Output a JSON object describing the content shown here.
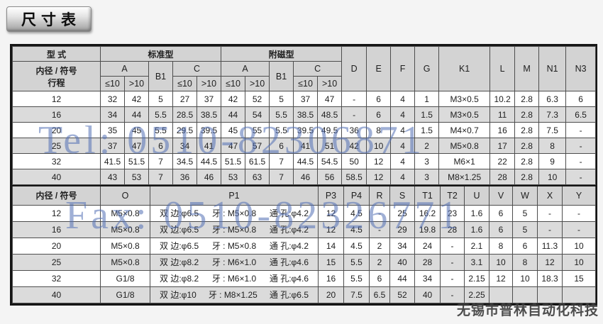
{
  "title": "尺寸表",
  "watermark": {
    "tel": "Tel: 0510-82306871",
    "fax": "Fax: 0510-82326771",
    "company": "无锡市普林自动化科技"
  },
  "s1": {
    "h": {
      "type": "型 式",
      "bore_label": "内径 / 符号",
      "stroke_label": "行程",
      "standard": "标准型",
      "magnet": "附磁型",
      "A": "A",
      "B1": "B1",
      "C": "C",
      "le10": "≤10",
      "gt10": ">10",
      "cols": [
        "D",
        "E",
        "F",
        "G",
        "K1",
        "L",
        "M",
        "N1",
        "N3"
      ]
    },
    "rows": [
      {
        "label": "12",
        "v": [
          "32",
          "42",
          "5",
          "27",
          "37",
          "42",
          "52",
          "5",
          "37",
          "47",
          "-",
          "6",
          "4",
          "1",
          "M3×0.5",
          "10.2",
          "2.8",
          "6.3",
          "6"
        ]
      },
      {
        "label": "16",
        "v": [
          "34",
          "44",
          "5.5",
          "28.5",
          "38.5",
          "44",
          "54",
          "5.5",
          "38.5",
          "48.5",
          "-",
          "6",
          "4",
          "1.5",
          "M3×0.5",
          "11",
          "2.8",
          "7.3",
          "6.5"
        ]
      },
      {
        "label": "20",
        "v": [
          "35",
          "45",
          "5.5",
          "29.5",
          "39.5",
          "45",
          "55",
          "5.5",
          "39.5",
          "49.5",
          "36",
          "8",
          "4",
          "1.5",
          "M4×0.7",
          "16",
          "2.8",
          "7.5",
          "-"
        ]
      },
      {
        "label": "25",
        "v": [
          "37",
          "47",
          "6",
          "34",
          "41",
          "47",
          "57",
          "6",
          "41",
          "51",
          "42",
          "10",
          "4",
          "2",
          "M5×0.8",
          "17",
          "2.8",
          "8",
          "-"
        ]
      },
      {
        "label": "32",
        "v": [
          "41.5",
          "51.5",
          "7",
          "34.5",
          "44.5",
          "51.5",
          "61.5",
          "7",
          "44.5",
          "54.5",
          "50",
          "12",
          "4",
          "3",
          "M6×1",
          "22",
          "2.8",
          "9",
          "-"
        ]
      },
      {
        "label": "40",
        "v": [
          "43",
          "53",
          "7",
          "36",
          "46",
          "53",
          "63",
          "7",
          "46",
          "56",
          "58.5",
          "12",
          "4",
          "3",
          "M8×1.25",
          "28",
          "2.8",
          "10",
          "-"
        ]
      }
    ]
  },
  "s2": {
    "h": {
      "bore_label": "内径 / 符号",
      "cols": [
        "O",
        "P1",
        "P3",
        "P4",
        "R",
        "S",
        "T1",
        "T2",
        "U",
        "V",
        "W",
        "X",
        "Y"
      ]
    },
    "rows": [
      {
        "label": "12",
        "o": "M5×0.8",
        "p1": [
          "双 边:φ6.5",
          "牙 : M5×0.8",
          "通 孔:φ4.2"
        ],
        "v": [
          "12",
          "4.5",
          "-",
          "25",
          "16.2",
          "23",
          "1.6",
          "6",
          "5",
          "-",
          "-"
        ]
      },
      {
        "label": "16",
        "o": "M5×0.8",
        "p1": [
          "双 边:φ6.5",
          "牙 : M5×0.8",
          "通 孔:φ4.2"
        ],
        "v": [
          "12",
          "4.5",
          "-",
          "29",
          "19.8",
          "28",
          "1.6",
          "6",
          "5",
          "-",
          "-"
        ]
      },
      {
        "label": "20",
        "o": "M5×0.8",
        "p1": [
          "双 边:φ6.5",
          "牙 : M5×0.8",
          "通 孔:φ4.2"
        ],
        "v": [
          "14",
          "4.5",
          "2",
          "34",
          "24",
          "-",
          "2.1",
          "8",
          "6",
          "11.3",
          "10"
        ]
      },
      {
        "label": "25",
        "o": "M5×0.8",
        "p1": [
          "双 边:φ8.2",
          "牙 : M6×1.0",
          "通 孔:φ4.6"
        ],
        "v": [
          "15",
          "5.5",
          "2",
          "40",
          "28",
          "-",
          "3.1",
          "10",
          "8",
          "12",
          "10"
        ]
      },
      {
        "label": "32",
        "o": "G1/8",
        "p1": [
          "双 边:φ8.2",
          "牙 : M6×1.0",
          "通 孔:φ4.6"
        ],
        "v": [
          "16",
          "5.5",
          "6",
          "44",
          "34",
          "-",
          "2.15",
          "12",
          "10",
          "18.3",
          "15"
        ]
      },
      {
        "label": "40",
        "o": "G1/8",
        "p1": [
          "双 边:φ10",
          "牙 : M8×1.25",
          "通 孔:φ6.5"
        ],
        "v": [
          "20",
          "7.5",
          "6.5",
          "52",
          "40",
          "-",
          "2.25",
          "",
          "",
          "",
          ""
        ]
      }
    ]
  }
}
